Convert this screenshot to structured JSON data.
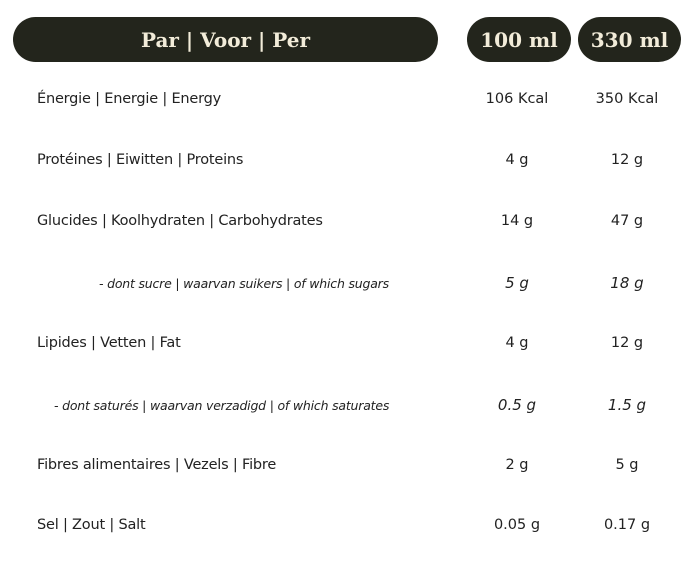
{
  "header": {
    "per": "Par | Voor | Per",
    "col1": "100 ml",
    "col2": "330 ml",
    "bg_color": "#23251c",
    "text_color": "#f2ecd9"
  },
  "rows": [
    {
      "label": "Énergie | Energie | Energy",
      "v100": "106 Kcal",
      "v330": "350 Kcal"
    },
    {
      "label": "Protéines | Eiwitten | Proteins",
      "v100": "4 g",
      "v330": "12 g"
    },
    {
      "label": "Glucides | Koolhydraten | Carbohydrates",
      "v100": "14 g",
      "v330": "47 g"
    },
    {
      "label": "-  dont sucre | waarvan suikers | of which sugars",
      "v100": "5 g",
      "v330": "18 g"
    },
    {
      "label": "Lipides | Vetten | Fat",
      "v100": "4 g",
      "v330": "12 g"
    },
    {
      "label": "- dont saturés | waarvan verzadigd | of which saturates",
      "v100": "0.5 g",
      "v330": "1.5 g"
    },
    {
      "label": "Fibres alimentaires | Vezels | Fibre",
      "v100": "2 g",
      "v330": "5 g"
    },
    {
      "label": "Sel | Zout | Salt",
      "v100": "0.05 g",
      "v330": "0.17 g"
    }
  ]
}
